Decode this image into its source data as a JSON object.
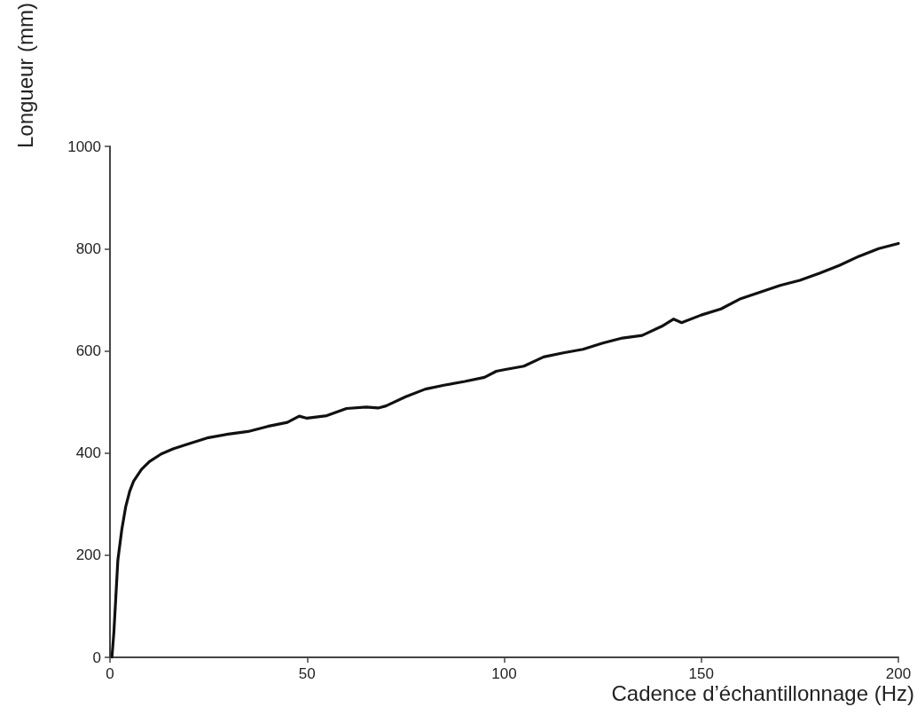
{
  "chart_data": {
    "type": "line",
    "xlabel": "Cadence d’échantillonnage (Hz)",
    "ylabel": "Longueur (mm)",
    "xlim": [
      0,
      200
    ],
    "xticks": [
      0,
      50,
      100,
      150,
      200
    ],
    "ylim": [
      0,
      1000
    ],
    "yticks": [
      0,
      200,
      400,
      600,
      800,
      1000
    ],
    "grid": false,
    "marker": "none",
    "line_style": "solid",
    "series": [
      {
        "color": "#111111",
        "x": [
          0.5,
          1,
          1.5,
          2,
          3,
          4,
          5,
          6,
          8,
          10,
          13,
          16,
          20,
          25,
          30,
          35,
          40,
          45,
          48,
          50,
          55,
          60,
          65,
          68,
          70,
          75,
          80,
          85,
          90,
          95,
          98,
          100,
          105,
          110,
          115,
          120,
          125,
          130,
          135,
          140,
          143,
          145,
          150,
          155,
          160,
          165,
          170,
          175,
          180,
          185,
          190,
          195,
          200
        ],
        "values": [
          0,
          50,
          120,
          190,
          250,
          295,
          325,
          345,
          368,
          383,
          398,
          408,
          418,
          430,
          437,
          442,
          452,
          460,
          472,
          468,
          473,
          487,
          490,
          488,
          492,
          510,
          525,
          533,
          540,
          548,
          560,
          563,
          570,
          588,
          596,
          603,
          615,
          625,
          630,
          648,
          662,
          655,
          670,
          682,
          702,
          715,
          728,
          738,
          752,
          767,
          785,
          800,
          810
        ]
      }
    ]
  }
}
